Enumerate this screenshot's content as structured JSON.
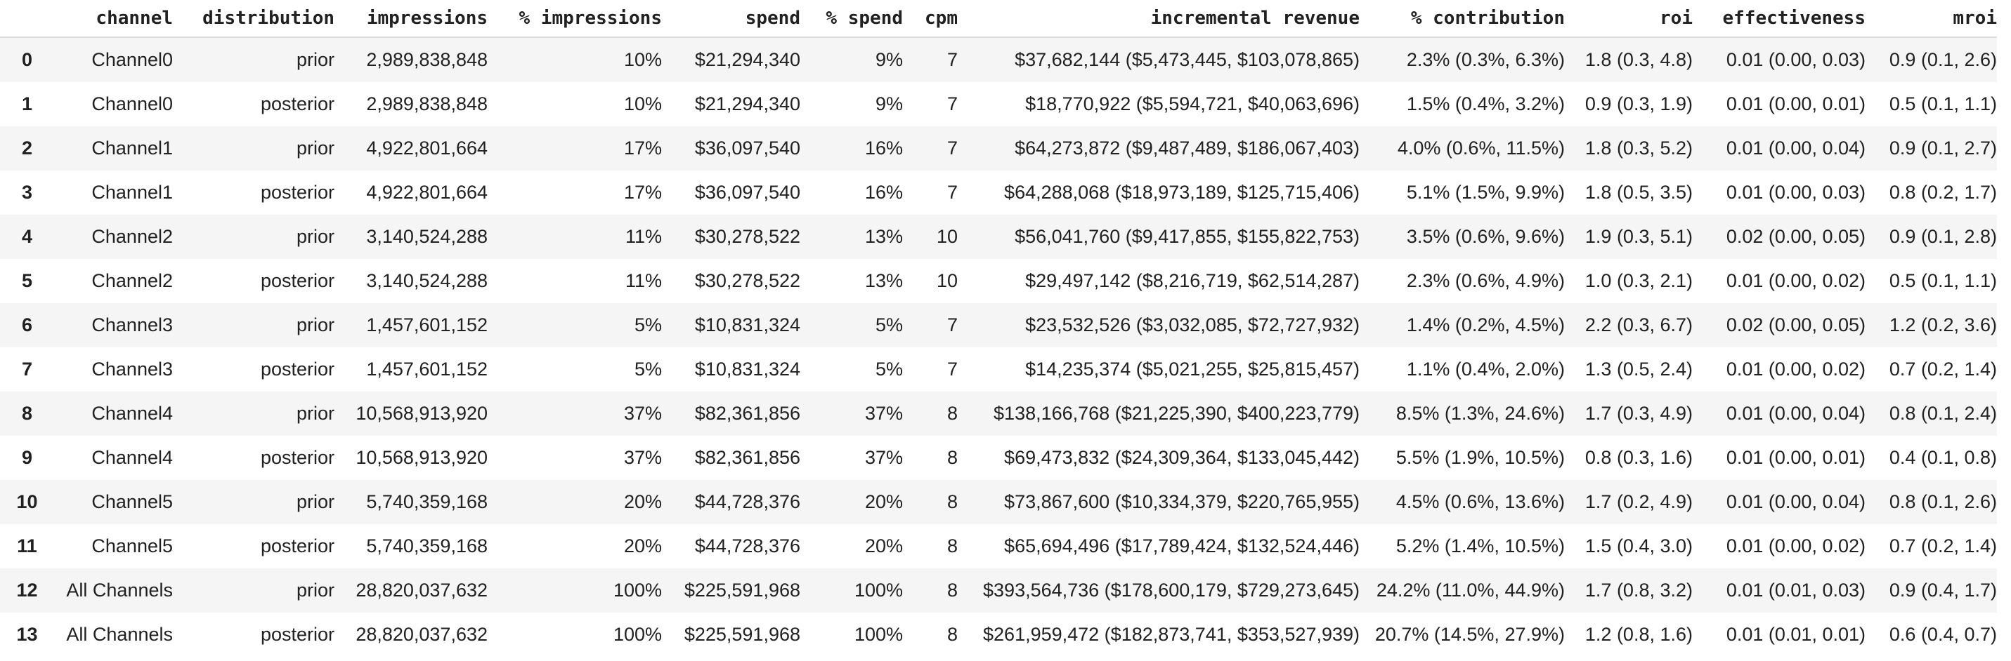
{
  "table": {
    "columns": [
      "channel",
      "distribution",
      "impressions",
      "% impressions",
      "spend",
      "% spend",
      "cpm",
      "incremental revenue",
      "% contribution",
      "roi",
      "effectiveness",
      "mroi"
    ],
    "rows": [
      [
        "0",
        "Channel0",
        "prior",
        "2,989,838,848",
        "10%",
        "$21,294,340",
        "9%",
        "7",
        "$37,682,144 ($5,473,445, $103,078,865)",
        "2.3% (0.3%, 6.3%)",
        "1.8 (0.3, 4.8)",
        "0.01 (0.00, 0.03)",
        "0.9 (0.1, 2.6)"
      ],
      [
        "1",
        "Channel0",
        "posterior",
        "2,989,838,848",
        "10%",
        "$21,294,340",
        "9%",
        "7",
        "$18,770,922 ($5,594,721, $40,063,696)",
        "1.5% (0.4%, 3.2%)",
        "0.9 (0.3, 1.9)",
        "0.01 (0.00, 0.01)",
        "0.5 (0.1, 1.1)"
      ],
      [
        "2",
        "Channel1",
        "prior",
        "4,922,801,664",
        "17%",
        "$36,097,540",
        "16%",
        "7",
        "$64,273,872 ($9,487,489, $186,067,403)",
        "4.0% (0.6%, 11.5%)",
        "1.8 (0.3, 5.2)",
        "0.01 (0.00, 0.04)",
        "0.9 (0.1, 2.7)"
      ],
      [
        "3",
        "Channel1",
        "posterior",
        "4,922,801,664",
        "17%",
        "$36,097,540",
        "16%",
        "7",
        "$64,288,068 ($18,973,189, $125,715,406)",
        "5.1% (1.5%, 9.9%)",
        "1.8 (0.5, 3.5)",
        "0.01 (0.00, 0.03)",
        "0.8 (0.2, 1.7)"
      ],
      [
        "4",
        "Channel2",
        "prior",
        "3,140,524,288",
        "11%",
        "$30,278,522",
        "13%",
        "10",
        "$56,041,760 ($9,417,855, $155,822,753)",
        "3.5% (0.6%, 9.6%)",
        "1.9 (0.3, 5.1)",
        "0.02 (0.00, 0.05)",
        "0.9 (0.1, 2.8)"
      ],
      [
        "5",
        "Channel2",
        "posterior",
        "3,140,524,288",
        "11%",
        "$30,278,522",
        "13%",
        "10",
        "$29,497,142 ($8,216,719, $62,514,287)",
        "2.3% (0.6%, 4.9%)",
        "1.0 (0.3, 2.1)",
        "0.01 (0.00, 0.02)",
        "0.5 (0.1, 1.1)"
      ],
      [
        "6",
        "Channel3",
        "prior",
        "1,457,601,152",
        "5%",
        "$10,831,324",
        "5%",
        "7",
        "$23,532,526 ($3,032,085, $72,727,932)",
        "1.4% (0.2%, 4.5%)",
        "2.2 (0.3, 6.7)",
        "0.02 (0.00, 0.05)",
        "1.2 (0.2, 3.6)"
      ],
      [
        "7",
        "Channel3",
        "posterior",
        "1,457,601,152",
        "5%",
        "$10,831,324",
        "5%",
        "7",
        "$14,235,374 ($5,021,255, $25,815,457)",
        "1.1% (0.4%, 2.0%)",
        "1.3 (0.5, 2.4)",
        "0.01 (0.00, 0.02)",
        "0.7 (0.2, 1.4)"
      ],
      [
        "8",
        "Channel4",
        "prior",
        "10,568,913,920",
        "37%",
        "$82,361,856",
        "37%",
        "8",
        "$138,166,768 ($21,225,390, $400,223,779)",
        "8.5% (1.3%, 24.6%)",
        "1.7 (0.3, 4.9)",
        "0.01 (0.00, 0.04)",
        "0.8 (0.1, 2.4)"
      ],
      [
        "9",
        "Channel4",
        "posterior",
        "10,568,913,920",
        "37%",
        "$82,361,856",
        "37%",
        "8",
        "$69,473,832 ($24,309,364, $133,045,442)",
        "5.5% (1.9%, 10.5%)",
        "0.8 (0.3, 1.6)",
        "0.01 (0.00, 0.01)",
        "0.4 (0.1, 0.8)"
      ],
      [
        "10",
        "Channel5",
        "prior",
        "5,740,359,168",
        "20%",
        "$44,728,376",
        "20%",
        "8",
        "$73,867,600 ($10,334,379, $220,765,955)",
        "4.5% (0.6%, 13.6%)",
        "1.7 (0.2, 4.9)",
        "0.01 (0.00, 0.04)",
        "0.8 (0.1, 2.6)"
      ],
      [
        "11",
        "Channel5",
        "posterior",
        "5,740,359,168",
        "20%",
        "$44,728,376",
        "20%",
        "8",
        "$65,694,496 ($17,789,424, $132,524,446)",
        "5.2% (1.4%, 10.5%)",
        "1.5 (0.4, 3.0)",
        "0.01 (0.00, 0.02)",
        "0.7 (0.2, 1.4)"
      ],
      [
        "12",
        "All Channels",
        "prior",
        "28,820,037,632",
        "100%",
        "$225,591,968",
        "100%",
        "8",
        "$393,564,736 ($178,600,179, $729,273,645)",
        "24.2% (11.0%, 44.9%)",
        "1.7 (0.8, 3.2)",
        "0.01 (0.01, 0.03)",
        "0.9 (0.4, 1.7)"
      ],
      [
        "13",
        "All Channels",
        "posterior",
        "28,820,037,632",
        "100%",
        "$225,591,968",
        "100%",
        "8",
        "$261,959,472 ($182,873,741, $353,527,939)",
        "20.7% (14.5%, 27.9%)",
        "1.2 (0.8, 1.6)",
        "0.01 (0.01, 0.01)",
        "0.6 (0.4, 0.7)"
      ]
    ]
  }
}
